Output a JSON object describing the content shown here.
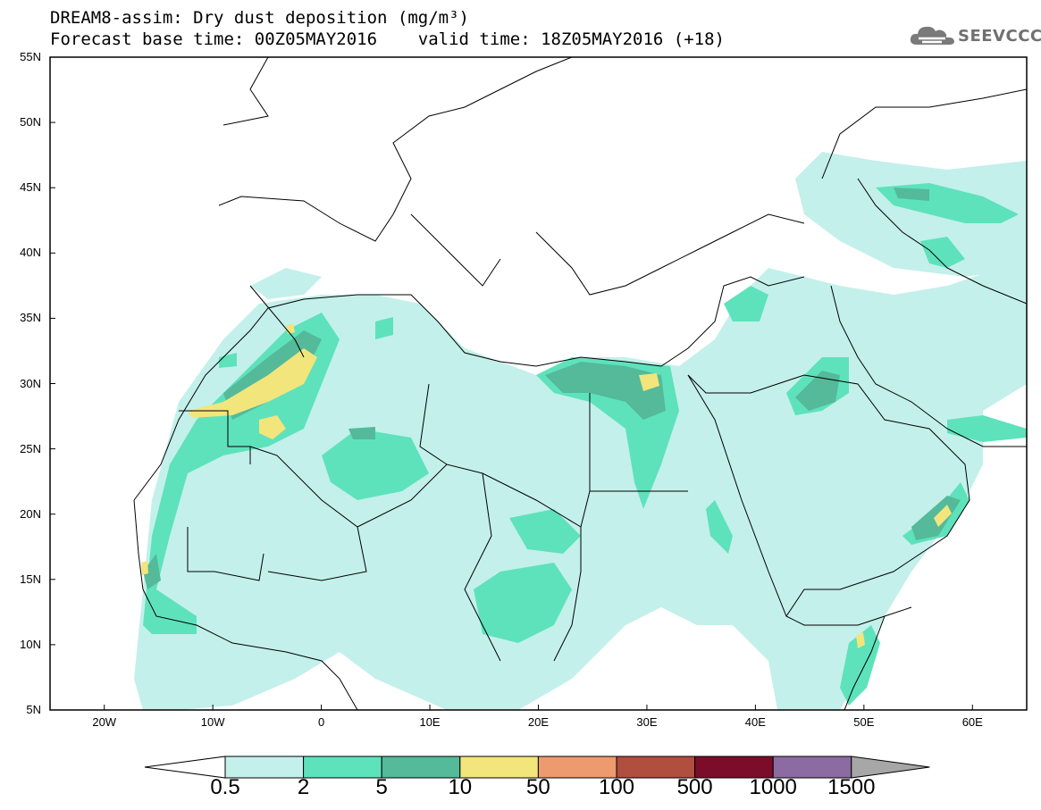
{
  "title": {
    "line1": "DREAM8-assim: Dry dust deposition (mg/m³)",
    "line2": "Forecast base time: 00Z05MAY2016    valid time: 18Z05MAY2016 (+18)"
  },
  "logo": {
    "text": "SEEVCCC",
    "icon": "cloud-icon"
  },
  "map": {
    "lat_ticks": [
      "55N",
      "50N",
      "45N",
      "40N",
      "35N",
      "30N",
      "25N",
      "20N",
      "15N",
      "10N",
      "5N"
    ],
    "lon_ticks": [
      "20W",
      "10W",
      "0",
      "10E",
      "20E",
      "30E",
      "40E",
      "50E",
      "60E"
    ],
    "lon_range": [
      -25,
      65
    ],
    "lat_range": [
      5,
      55
    ]
  },
  "colorbar": {
    "labels": [
      "0.5",
      "2",
      "5",
      "10",
      "50",
      "100",
      "500",
      "1000",
      "1500"
    ],
    "colors": [
      "#c3f0eb",
      "#5ee2bc",
      "#54ba99",
      "#f2e57c",
      "#ec9a6e",
      "#b04e3f",
      "#7c0d2a",
      "#8b6ba1",
      "#a7a7a7"
    ],
    "under_color": "#ffffff"
  }
}
